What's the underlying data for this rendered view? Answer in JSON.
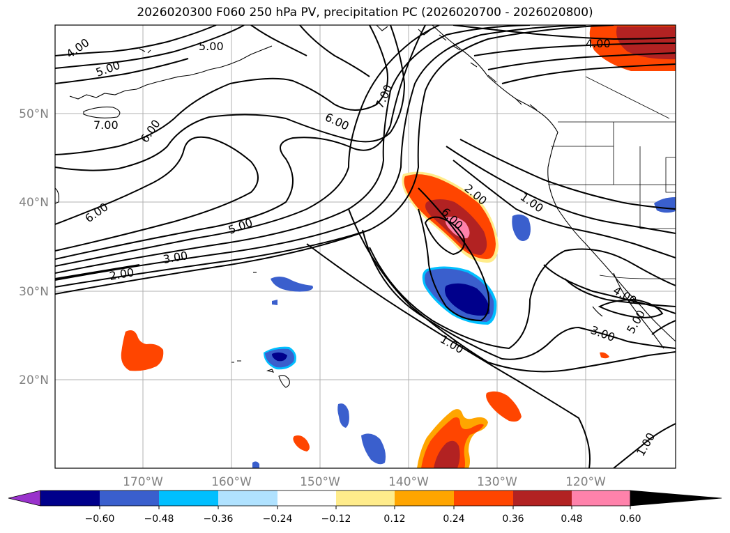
{
  "title": "2026020300 F060 250 hPa PV, precipitation PC (2026020700 - 2026020800)",
  "map": {
    "lat_labels": [
      "50°N",
      "40°N",
      "30°N",
      "20°N"
    ],
    "lon_labels": [
      "170°W",
      "160°W",
      "150°W",
      "140°W",
      "130°W",
      "120°W"
    ],
    "contour_labels": {
      "c1": "4.00",
      "c2": "5.00",
      "c3": "5.00",
      "c4": "7.00",
      "c5": "6.00",
      "c6": "6.00",
      "c7": "7.00",
      "c8": "4.00",
      "c9": "6.00",
      "c10": "5.00",
      "c11": "3.00",
      "c12": "2.00",
      "c13": "2.00",
      "c14": "6.00",
      "c15": "1.00",
      "c16": "4.00",
      "c17": "5.00",
      "c18": "3.00",
      "c19": "1.00",
      "c20": "1.00"
    }
  },
  "colorbar": {
    "tick_labels": [
      "−0.60",
      "−0.48",
      "−0.36",
      "−0.24",
      "−0.12",
      "0.12",
      "0.24",
      "0.36",
      "0.48",
      "0.60"
    ],
    "colors": [
      "#9932cc",
      "#00008b",
      "#3a5fcd",
      "#00bfff",
      "#b0e2ff",
      "#ffffff",
      "#ffec8b",
      "#ffa500",
      "#ff4500",
      "#b22222",
      "#ff82ab"
    ]
  }
}
